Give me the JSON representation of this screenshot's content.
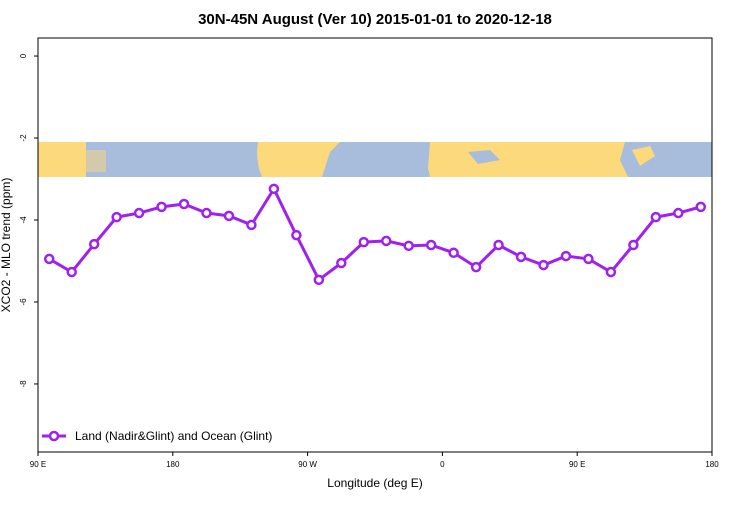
{
  "chart_data": {
    "type": "line",
    "title": "30N-45N August (Ver 10)   2015-01-01 to 2020-12-18",
    "x_label": "Longitude (deg E)",
    "y_label": "XCO2 - MLO trend (ppm)",
    "xlim": [
      90,
      540
    ],
    "ylim": [
      -9.66,
      0.44
    ],
    "xticks": [
      {
        "value": 90,
        "label": "90 E"
      },
      180,
      {
        "value": 270,
        "label": "90 W"
      },
      {
        "value": 360,
        "label": "0"
      },
      {
        "value": 450,
        "label": "90 E"
      },
      {
        "value": 540,
        "label": "180"
      }
    ],
    "yticks": [
      0,
      -2,
      -4,
      -6,
      -8
    ],
    "legend": "bottom-left",
    "series": [
      {
        "name": "Land (Nadir&Glint) and Ocean (Glint)",
        "color": "#a020f0",
        "x": [
          97.5,
          112.5,
          127.5,
          142.5,
          157.5,
          172.5,
          187.5,
          202.5,
          217.5,
          232.5,
          247.5,
          262.5,
          277.5,
          292.5,
          307.5,
          322.5,
          337.5,
          352.5,
          367.5,
          382.5,
          397.5,
          412.5,
          427.5,
          442.5,
          457.5,
          472.5,
          487.5,
          502.5,
          517.5,
          532.5
        ],
        "values": [
          -4.95,
          -5.27,
          -4.59,
          -3.93,
          -3.83,
          -3.68,
          -3.61,
          -3.83,
          -3.9,
          -4.12,
          -3.24,
          -4.37,
          -5.46,
          -5.05,
          -4.54,
          -4.51,
          -4.63,
          -4.61,
          -4.8,
          -5.15,
          -4.61,
          -4.9,
          -5.1,
          -4.88,
          -4.95,
          -5.27,
          -4.61,
          -3.93,
          -3.83,
          -3.68
        ]
      }
    ]
  }
}
